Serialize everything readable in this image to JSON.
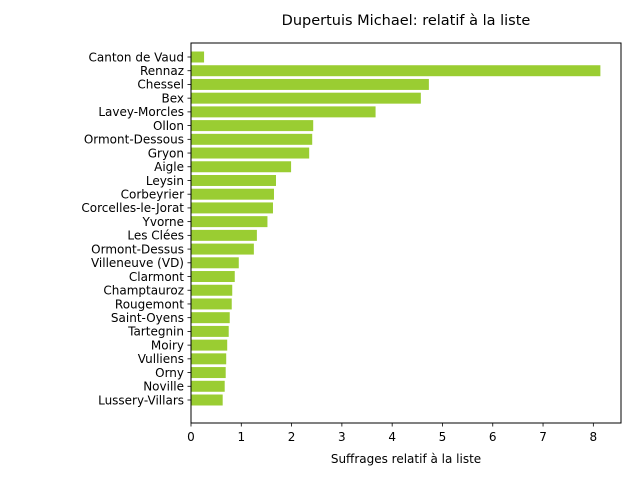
{
  "chart_data": {
    "type": "bar",
    "orientation": "horizontal",
    "title": "Dupertuis Michael: relatif à la liste",
    "xlabel": "Suffrages relatif à la liste",
    "ylabel": "",
    "xlim": [
      0,
      8.55
    ],
    "xticks": [
      0,
      1,
      2,
      3,
      4,
      5,
      6,
      7,
      8
    ],
    "grid": false,
    "bar_color": "#9acd32",
    "categories": [
      "Canton de Vaud",
      "Rennaz",
      "Chessel",
      "Bex",
      "Lavey-Morcles",
      "Ollon",
      "Ormont-Dessous",
      "Gryon",
      "Aigle",
      "Leysin",
      "Corbeyrier",
      "Corcelles-le-Jorat",
      "Yvorne",
      "Les Clées",
      "Ormont-Dessus",
      "Villeneuve (VD)",
      "Clarmont",
      "Champtauroz",
      "Rougemont",
      "Saint-Oyens",
      "Tartegnin",
      "Moiry",
      "Vulliens",
      "Orny",
      "Noville",
      "Lussery-Villars"
    ],
    "values": [
      0.26,
      8.14,
      4.73,
      4.57,
      3.67,
      2.43,
      2.41,
      2.35,
      1.99,
      1.69,
      1.65,
      1.63,
      1.52,
      1.31,
      1.25,
      0.95,
      0.87,
      0.82,
      0.81,
      0.77,
      0.75,
      0.72,
      0.7,
      0.69,
      0.67,
      0.63
    ]
  }
}
